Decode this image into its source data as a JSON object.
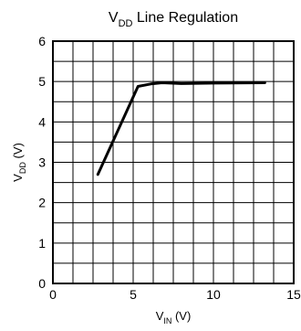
{
  "chart_data": {
    "type": "line",
    "title": {
      "main": "V",
      "sub": "DD",
      "rest": " Line Regulation"
    },
    "xlabel": {
      "main": "V",
      "sub": "IN",
      "rest": " (V)"
    },
    "ylabel": {
      "main": "V",
      "sub": "DD",
      "rest": " (V)"
    },
    "xlim": [
      0,
      15
    ],
    "ylim": [
      0,
      6
    ],
    "x_ticks": [
      0,
      5,
      10,
      15
    ],
    "y_ticks": [
      0,
      1,
      2,
      3,
      4,
      5,
      6
    ],
    "x_minor_step": 1.25,
    "y_minor_step": 0.5,
    "grid": true,
    "line_color": "#000000",
    "series": [
      {
        "x": [
          2.8,
          5.3,
          6.1,
          6.8,
          8.0,
          10.0,
          13.2
        ],
        "y": [
          2.7,
          4.88,
          4.94,
          4.97,
          4.95,
          4.96,
          4.97
        ]
      }
    ]
  }
}
